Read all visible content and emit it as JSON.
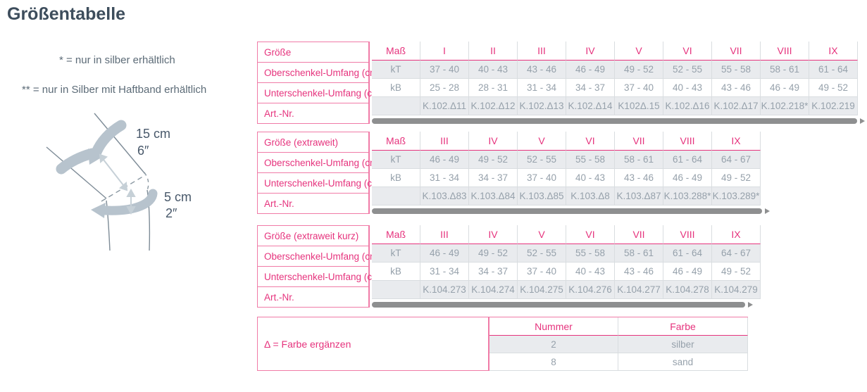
{
  "page": {
    "title": "Größentabelle",
    "notes": [
      "* = nur in silber erhältlich",
      "** = nur in Silber mit Haftband erhältlich"
    ]
  },
  "diagram": {
    "labels": [
      "15 cm",
      "6″",
      "5 cm",
      "2″"
    ]
  },
  "colors": {
    "accent_pink_text": "#e6337d",
    "pink_border": "#f07ba7",
    "cell_text_gray": "#96a1ab",
    "row_shade_bg": "#e9ebee",
    "cell_border": "#d9dde0",
    "title_slate": "#3d4d5c",
    "scrollbar_gray": "#8e8f90",
    "diagram_band_gray": "#b7c3cd"
  },
  "tables": [
    {
      "label_rows": [
        "Größe",
        "Oberschenkel-Umfang (cm)",
        "Unterschenkel-Umfang (cm)",
        "Art.-Nr."
      ],
      "mass_header": "Maß",
      "sizes": [
        "I",
        "II",
        "III",
        "IV",
        "V",
        "VI",
        "VII",
        "VIII",
        "IX"
      ],
      "rows": [
        {
          "mass": "kT",
          "values": [
            "37 - 40",
            "40 - 43",
            "43 - 46",
            "46 - 49",
            "49 - 52",
            "52 - 55",
            "55 - 58",
            "58 - 61",
            "61 - 64"
          ]
        },
        {
          "mass": "kB",
          "values": [
            "25 - 28",
            "28 - 31",
            "31 - 34",
            "34 - 37",
            "37 - 40",
            "40 - 43",
            "43 - 46",
            "46 - 49",
            "49 - 52"
          ]
        },
        {
          "mass": "",
          "values": [
            "K.102.Δ11",
            "K.102.Δ12",
            "K.102.Δ13",
            "K.102.Δ14",
            "K102Δ.15",
            "K.102.Δ16",
            "K.102.Δ17",
            "K.102.218*",
            "K.102.219"
          ]
        }
      ]
    },
    {
      "label_rows": [
        "Größe (extraweit)",
        "Oberschenkel-Umfang (cm)",
        "Unterschenkel-Umfang (cm)",
        "Art.-Nr."
      ],
      "mass_header": "Maß",
      "sizes": [
        "III",
        "IV",
        "V",
        "VI",
        "VII",
        "VIII",
        "IX"
      ],
      "rows": [
        {
          "mass": "kT",
          "values": [
            "46 - 49",
            "49 - 52",
            "52 - 55",
            "55 - 58",
            "58 - 61",
            "61 - 64",
            "64 - 67"
          ]
        },
        {
          "mass": "kB",
          "values": [
            "31 - 34",
            "34 - 37",
            "37 - 40",
            "40 - 43",
            "43 - 46",
            "46 - 49",
            "49 - 52"
          ]
        },
        {
          "mass": "",
          "values": [
            "K.103.Δ83",
            "K.103.Δ84",
            "K.103.Δ85",
            "K.103.Δ8",
            "K.103.Δ87",
            "K.103.288*",
            "K.103.289*"
          ]
        }
      ]
    },
    {
      "label_rows": [
        "Größe (extraweit kurz)",
        "Oberschenkel-Umfang (cm)",
        "Unterschenkel-Umfang (cm)",
        "Art.-Nr."
      ],
      "mass_header": "Maß",
      "sizes": [
        "III",
        "IV",
        "V",
        "VI",
        "VII",
        "VIII",
        "IX"
      ],
      "rows": [
        {
          "mass": "kT",
          "values": [
            "46 - 49",
            "49 - 52",
            "52 - 55",
            "55 - 58",
            "58 - 61",
            "61 - 64",
            "64 - 67"
          ]
        },
        {
          "mass": "kB",
          "values": [
            "31 - 34",
            "34 - 37",
            "37 - 40",
            "40 - 43",
            "43 - 46",
            "46 - 49",
            "49 - 52"
          ]
        },
        {
          "mass": "",
          "values": [
            "K.104.273",
            "K.104.274",
            "K.104.275",
            "K.104.276",
            "K.104.277",
            "K.104.278",
            "K.104.279"
          ]
        }
      ]
    }
  ],
  "legend": {
    "label": "Δ = Farbe ergänzen",
    "columns": [
      "Nummer",
      "Farbe"
    ],
    "rows": [
      [
        "2",
        "silber"
      ],
      [
        "8",
        "sand"
      ]
    ]
  }
}
